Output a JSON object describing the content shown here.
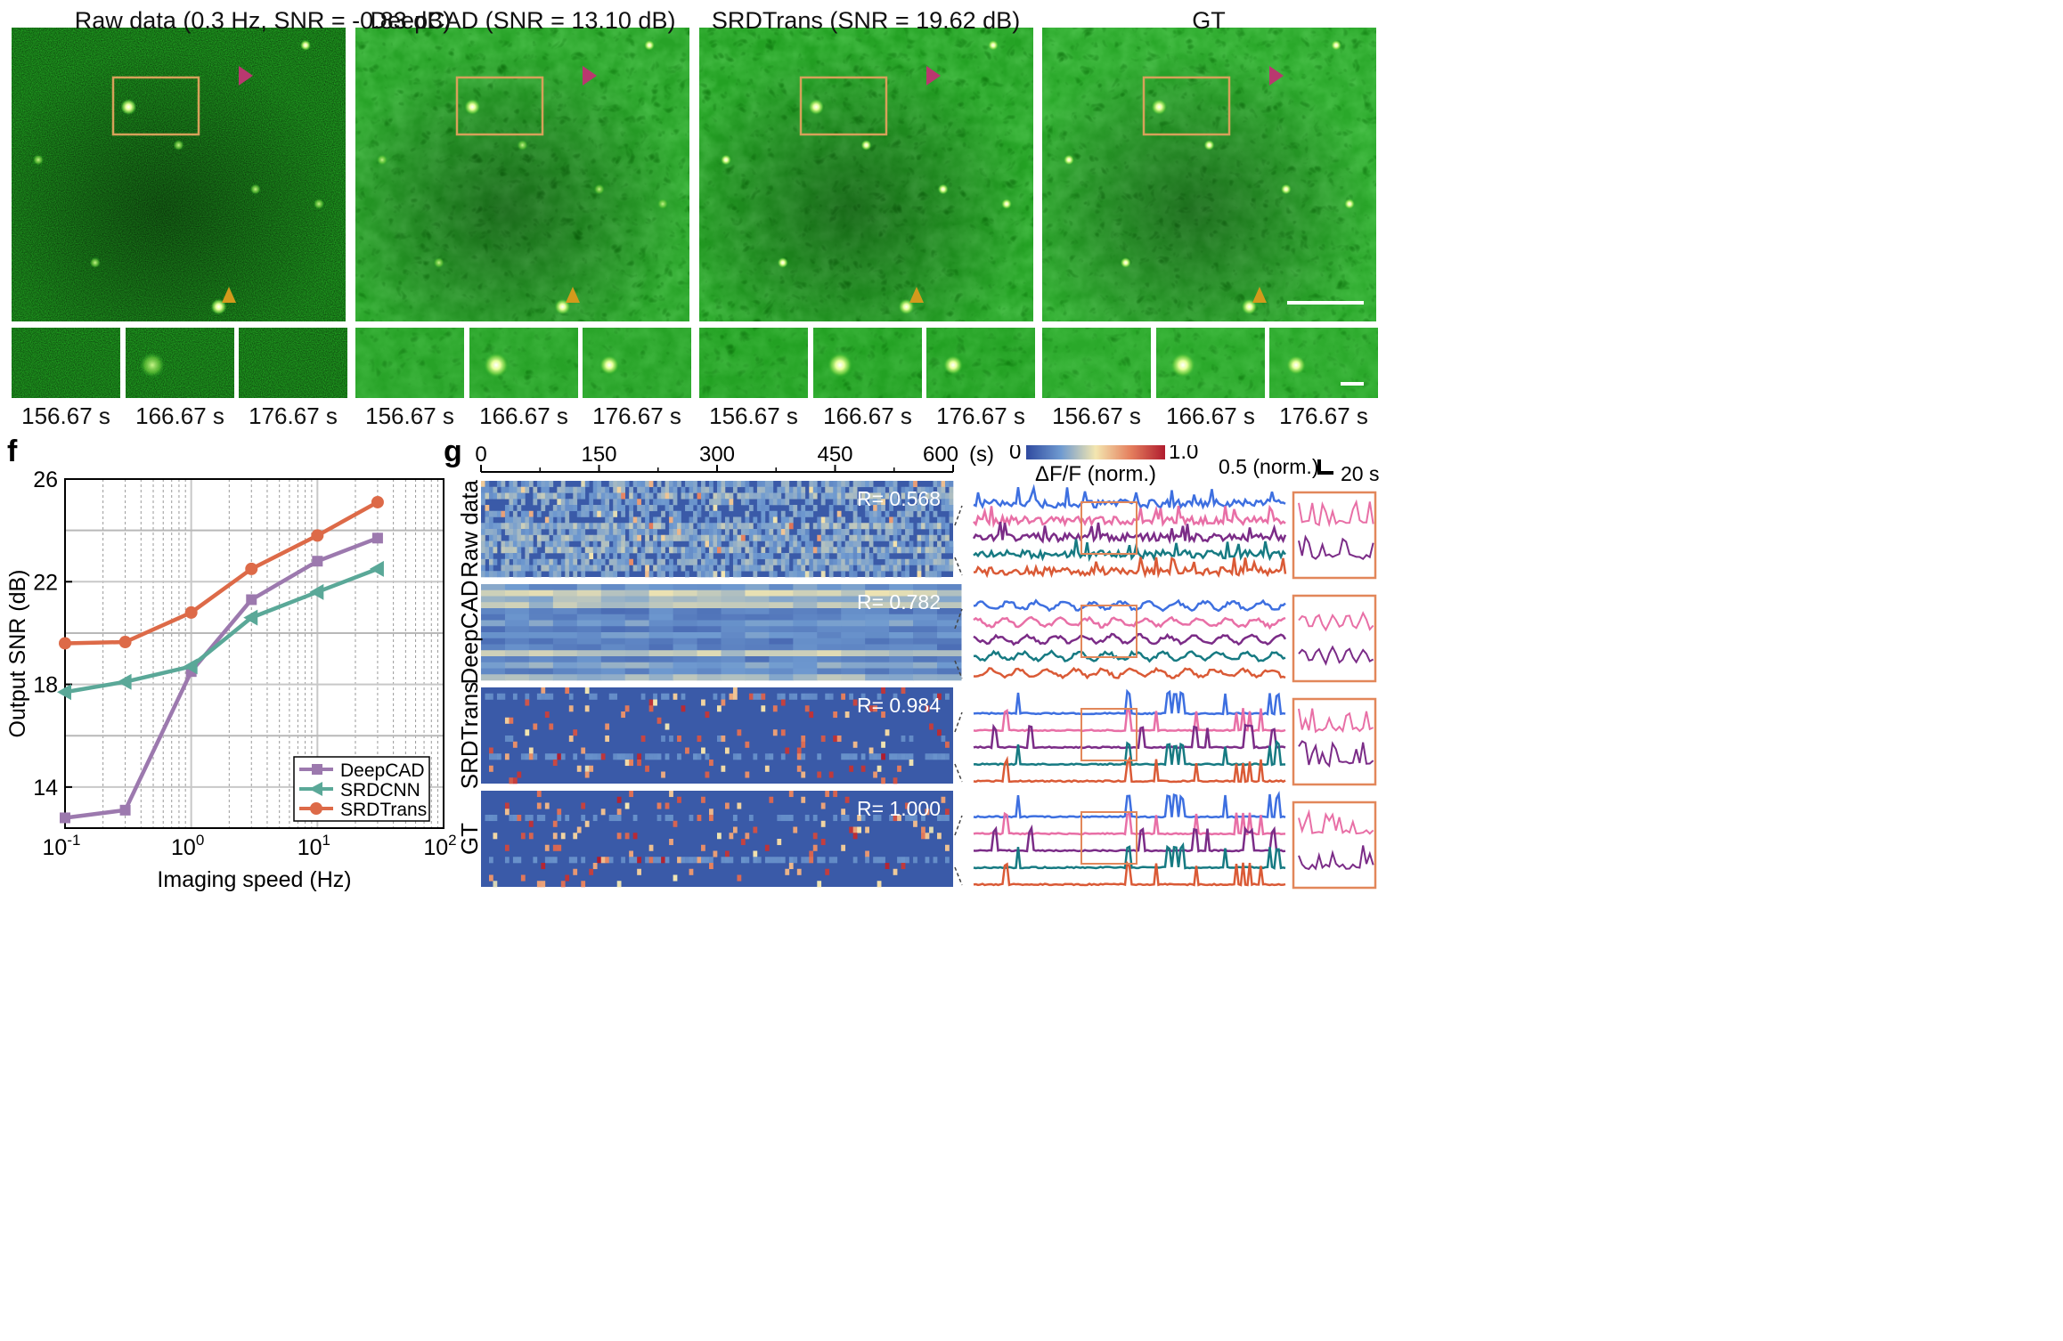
{
  "microscopy": {
    "panels": [
      {
        "title": "Raw data (0.3 Hz, SNR = -0.83 dB)",
        "style": "raw"
      },
      {
        "title": "DeepCAD (SNR = 13.10 dB)",
        "style": "deepcad"
      },
      {
        "title": "SRDTrans (SNR = 19.62 dB)",
        "style": "srdtrans"
      },
      {
        "title": "GT",
        "style": "gt"
      }
    ],
    "time_labels": [
      "156.67 s",
      "166.67 s",
      "176.67 s"
    ],
    "colors": {
      "roi_box": "#d7a15a",
      "arrow_magenta": "#b9386f",
      "arrow_orange": "#d39a1c",
      "scale_bar": "#ffffff"
    }
  },
  "panel_f": {
    "label": "f",
    "chart_data": {
      "type": "line",
      "xscale": "log",
      "x": [
        0.1,
        0.3,
        1,
        3,
        10,
        30
      ],
      "series": [
        {
          "name": "DeepCAD",
          "values": [
            12.8,
            13.1,
            18.5,
            21.3,
            22.8,
            23.7
          ],
          "color": "#9c79ae",
          "marker": "square"
        },
        {
          "name": "SRDCNN",
          "values": [
            17.7,
            18.1,
            18.7,
            20.6,
            21.6,
            22.5
          ],
          "color": "#5aa898",
          "marker": "triangle-left"
        },
        {
          "name": "SRDTrans",
          "values": [
            19.6,
            19.65,
            20.8,
            22.5,
            23.8,
            25.1
          ],
          "color": "#dd6a48",
          "marker": "circle"
        }
      ],
      "xlabel": "Imaging speed (Hz)",
      "ylabel": "Output SNR (dB)",
      "xlim": [
        0.1,
        100
      ],
      "ylim": [
        12.4,
        26
      ],
      "yticks": [
        14,
        18,
        22,
        26
      ],
      "xtick_labels": [
        {
          "base": "10",
          "exp": "-1"
        },
        {
          "base": "10",
          "exp": "0"
        },
        {
          "base": "10",
          "exp": "1"
        },
        {
          "base": "10",
          "exp": "2"
        }
      ],
      "legend": "bottom-right"
    }
  },
  "panel_g": {
    "label": "g",
    "time_axis": {
      "ticks": [
        "0",
        "150",
        "300",
        "450",
        "600"
      ],
      "unit": "(s)"
    },
    "colorbar": {
      "min": "0",
      "max": "1.0",
      "label": "ΔF/F (norm.)"
    },
    "scale": {
      "amp": "0.5 (norm.)",
      "time": "20 s"
    },
    "rows": [
      {
        "name": "Raw data",
        "r": "R= 0.568",
        "style": "raw"
      },
      {
        "name": "DeepCAD",
        "r": "R= 0.782",
        "style": "deepcad"
      },
      {
        "name": "SRDTrans",
        "r": "R= 0.984",
        "style": "srd"
      },
      {
        "name": "GT",
        "r": "R= 1.000",
        "style": "gt"
      }
    ],
    "trace_colors": [
      "#3d6fe0",
      "#e86fa6",
      "#7b2c87",
      "#167a82",
      "#da5a36"
    ],
    "box_color": "#e2875a"
  }
}
